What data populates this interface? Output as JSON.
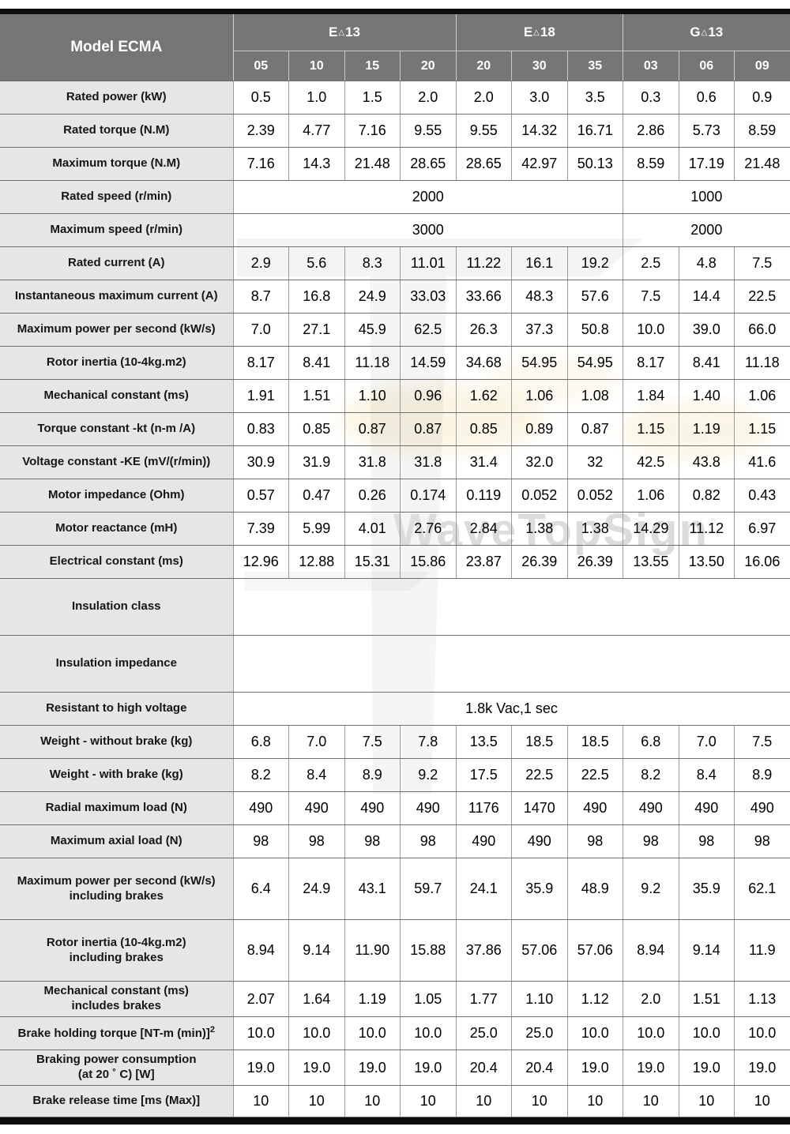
{
  "watermark": {
    "text": "WaveTopSign"
  },
  "colors": {
    "header_bg": "#767676",
    "label_bg": "#e6e6e6",
    "bar": "#0d0d0d",
    "border_dark": "#6e6e6e",
    "border_light": "#9b9b9b",
    "watermark_text": "#dcdcdc"
  },
  "table": {
    "title": "Model ECMA",
    "groups": [
      {
        "prefix": "E",
        "mark": "△",
        "num": "13",
        "cols": [
          "05",
          "10",
          "15",
          "20"
        ]
      },
      {
        "prefix": "E",
        "mark": "△",
        "num": "18",
        "cols": [
          "20",
          "30",
          "35"
        ]
      },
      {
        "prefix": "G",
        "mark": "△",
        "num": "13",
        "cols": [
          "03",
          "06",
          "09"
        ]
      }
    ],
    "rows": [
      {
        "label_lines": [
          "Rated power (kW)"
        ],
        "size": "normal",
        "values": [
          "0.5",
          "1.0",
          "1.5",
          "2.0",
          "2.0",
          "3.0",
          "3.5",
          "0.3",
          "0.6",
          "0.9"
        ]
      },
      {
        "label_lines": [
          "Rated torque (N.M)"
        ],
        "size": "normal",
        "values": [
          "2.39",
          "4.77",
          "7.16",
          "9.55",
          "9.55",
          "14.32",
          "16.71",
          "2.86",
          "5.73",
          "8.59"
        ]
      },
      {
        "label_lines": [
          "Maximum torque (N.M)"
        ],
        "size": "normal",
        "values": [
          "7.16",
          "14.3",
          "21.48",
          "28.65",
          "28.65",
          "42.97",
          "50.13",
          "8.59",
          "17.19",
          "21.48"
        ]
      },
      {
        "label_lines": [
          "Rated speed (r/min)"
        ],
        "size": "normal",
        "merged": [
          {
            "span": 7,
            "text": "2000"
          },
          {
            "span": 3,
            "text": "1000"
          }
        ]
      },
      {
        "label_lines": [
          "Maximum speed (r/min)"
        ],
        "size": "normal",
        "merged": [
          {
            "span": 7,
            "text": "3000"
          },
          {
            "span": 3,
            "text": "2000"
          }
        ]
      },
      {
        "label_lines": [
          "Rated current (A)"
        ],
        "size": "normal",
        "values": [
          "2.9",
          "5.6",
          "8.3",
          "11.01",
          "11.22",
          "16.1",
          "19.2",
          "2.5",
          "4.8",
          "7.5"
        ]
      },
      {
        "label_lines": [
          "Instantaneous maximum current (A)"
        ],
        "size": "normal",
        "values": [
          "8.7",
          "16.8",
          "24.9",
          "33.03",
          "33.66",
          "48.3",
          "57.6",
          "7.5",
          "14.4",
          "22.5"
        ]
      },
      {
        "label_lines": [
          "Maximum power per second (kW/s)"
        ],
        "size": "normal",
        "values": [
          "7.0",
          "27.1",
          "45.9",
          "62.5",
          "26.3",
          "37.3",
          "50.8",
          "10.0",
          "39.0",
          "66.0"
        ]
      },
      {
        "label_lines": [
          "Rotor inertia (10-4kg.m2)"
        ],
        "size": "normal",
        "values": [
          "8.17",
          "8.41",
          "11.18",
          "14.59",
          "34.68",
          "54.95",
          "54.95",
          "8.17",
          "8.41",
          "11.18"
        ]
      },
      {
        "label_lines": [
          "Mechanical constant (ms)"
        ],
        "size": "normal",
        "values": [
          "1.91",
          "1.51",
          "1.10",
          "0.96",
          "1.62",
          "1.06",
          "1.08",
          "1.84",
          "1.40",
          "1.06"
        ]
      },
      {
        "label_lines": [
          "Torque constant -kt (n-m /A)"
        ],
        "size": "normal",
        "values": [
          "0.83",
          "0.85",
          "0.87",
          "0.87",
          "0.85",
          "0.89",
          "0.87",
          "1.15",
          "1.19",
          "1.15"
        ]
      },
      {
        "label_lines": [
          "Voltage constant -KE (mV/(r/min))"
        ],
        "size": "normal",
        "values": [
          "30.9",
          "31.9",
          "31.8",
          "31.8",
          "31.4",
          "32.0",
          "32",
          "42.5",
          "43.8",
          "41.6"
        ]
      },
      {
        "label_lines": [
          "Motor impedance (Ohm)"
        ],
        "size": "normal",
        "values": [
          "0.57",
          "0.47",
          "0.26",
          "0.174",
          "0.119",
          "0.052",
          "0.052",
          "1.06",
          "0.82",
          "0.43"
        ]
      },
      {
        "label_lines": [
          "Motor reactance (mH)"
        ],
        "size": "normal",
        "values": [
          "7.39",
          "5.99",
          "4.01",
          "2.76",
          "2.84",
          "1.38",
          "1.38",
          "14.29",
          "11.12",
          "6.97"
        ]
      },
      {
        "label_lines": [
          "Electrical constant (ms)"
        ],
        "size": "normal",
        "values": [
          "12.96",
          "12.88",
          "15.31",
          "15.86",
          "23.87",
          "26.39",
          "26.39",
          "13.55",
          "13.50",
          "16.06"
        ]
      },
      {
        "label_lines": [
          "Insulation class"
        ],
        "size": "tall",
        "merged": [
          {
            "span": 10,
            "text": ""
          }
        ]
      },
      {
        "label_lines": [
          "Insulation impedance"
        ],
        "size": "tall",
        "merged": [
          {
            "span": 10,
            "text": ""
          }
        ]
      },
      {
        "label_lines": [
          "Resistant to high voltage"
        ],
        "size": "normal",
        "merged": [
          {
            "span": 10,
            "text": "1.8k Vac,1 sec"
          }
        ]
      },
      {
        "label_lines": [
          "Weight - without brake (kg)"
        ],
        "size": "normal",
        "values": [
          "6.8",
          "7.0",
          "7.5",
          "7.8",
          "13.5",
          "18.5",
          "18.5",
          "6.8",
          "7.0",
          "7.5"
        ]
      },
      {
        "label_lines": [
          "Weight - with brake (kg)"
        ],
        "size": "normal",
        "values": [
          "8.2",
          "8.4",
          "8.9",
          "9.2",
          "17.5",
          "22.5",
          "22.5",
          "8.2",
          "8.4",
          "8.9"
        ]
      },
      {
        "label_lines": [
          "Radial maximum load (N)"
        ],
        "size": "normal",
        "values": [
          "490",
          "490",
          "490",
          "490",
          "1176",
          "1470",
          "490",
          "490",
          "490",
          "490"
        ]
      },
      {
        "label_lines": [
          "Maximum axial load (N)"
        ],
        "size": "normal",
        "values": [
          "98",
          "98",
          "98",
          "98",
          "490",
          "490",
          "98",
          "98",
          "98",
          "98"
        ]
      },
      {
        "label_lines": [
          "Maximum power per second (kW/s)",
          "including brakes"
        ],
        "size": "xtall",
        "values": [
          "6.4",
          "24.9",
          "43.1",
          "59.7",
          "24.1",
          "35.9",
          "48.9",
          "9.2",
          "35.9",
          "62.1"
        ]
      },
      {
        "label_lines": [
          "Rotor inertia (10-4kg.m2)",
          "including brakes"
        ],
        "size": "xtall",
        "values": [
          "8.94",
          "9.14",
          "11.90",
          "15.88",
          "37.86",
          "57.06",
          "57.06",
          "8.94",
          "9.14",
          "11.9"
        ]
      },
      {
        "label_lines": [
          "Mechanical constant (ms)",
          "includes brakes"
        ],
        "size": "two",
        "values": [
          "2.07",
          "1.64",
          "1.19",
          "1.05",
          "1.77",
          "1.10",
          "1.12",
          "2.0",
          "1.51",
          "1.13"
        ]
      },
      {
        "label_lines": [
          "Brake holding torque [NT-m (min)]"
        ],
        "label_sup": "2",
        "size": "normal",
        "values": [
          "10.0",
          "10.0",
          "10.0",
          "10.0",
          "25.0",
          "25.0",
          "10.0",
          "10.0",
          "10.0",
          "10.0"
        ]
      },
      {
        "label_lines": [
          "Braking power consumption",
          "(at 20 ˚ C) [W]"
        ],
        "size": "two",
        "values": [
          "19.0",
          "19.0",
          "19.0",
          "19.0",
          "20.4",
          "20.4",
          "19.0",
          "19.0",
          "19.0",
          "19.0"
        ]
      },
      {
        "label_lines": [
          "Brake release time [ms (Max)]"
        ],
        "size": "last",
        "values": [
          "10",
          "10",
          "10",
          "10",
          "10",
          "10",
          "10",
          "10",
          "10",
          "10"
        ]
      }
    ]
  }
}
